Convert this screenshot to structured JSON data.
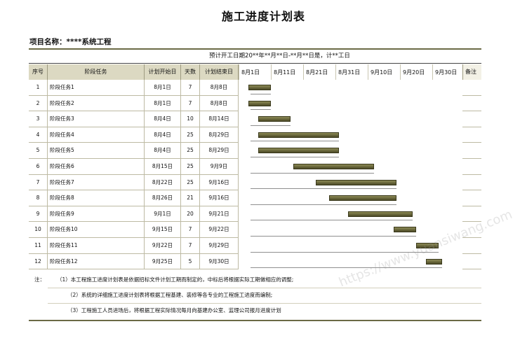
{
  "title": "施工进度计划表",
  "project_line": "项目名称：****系统工程",
  "schedule_note": "预计开工日期20**年**月**日-**月**日是，计**工日",
  "headers": {
    "seq": "序号",
    "task": "阶段任务",
    "plan_start": "计划开始日",
    "days": "天数",
    "plan_end": "计划结束日",
    "remark": "备注"
  },
  "date_labels": [
    "8月1日",
    "8月11日",
    "8月21日",
    "8月31日",
    "9月10日",
    "9月20日",
    "9月30日"
  ],
  "tasks": [
    {
      "seq": "1",
      "name": "阶段任务1",
      "start": "8月1日",
      "days": "7",
      "end": "8月8日"
    },
    {
      "seq": "2",
      "name": "阶段任务2",
      "start": "8月1日",
      "days": "7",
      "end": "8月8日"
    },
    {
      "seq": "3",
      "name": "阶段任务3",
      "start": "8月4日",
      "days": "10",
      "end": "8月14日"
    },
    {
      "seq": "4",
      "name": "阶段任务4",
      "start": "8月4日",
      "days": "25",
      "end": "8月29日"
    },
    {
      "seq": "5",
      "name": "阶段任务5",
      "start": "8月4日",
      "days": "25",
      "end": "8月29日"
    },
    {
      "seq": "6",
      "name": "阶段任务6",
      "start": "8月15日",
      "days": "25",
      "end": "9月9日"
    },
    {
      "seq": "7",
      "name": "阶段任务7",
      "start": "8月22日",
      "days": "25",
      "end": "9月16日"
    },
    {
      "seq": "8",
      "name": "阶段任务8",
      "start": "8月26日",
      "days": "21",
      "end": "9月16日"
    },
    {
      "seq": "9",
      "name": "阶段任务9",
      "start": "9月1日",
      "days": "20",
      "end": "9月21日"
    },
    {
      "seq": "10",
      "name": "阶段任务10",
      "start": "9月15日",
      "days": "7",
      "end": "9月22日"
    },
    {
      "seq": "11",
      "name": "阶段任务11",
      "start": "9月22日",
      "days": "7",
      "end": "9月29日"
    },
    {
      "seq": "12",
      "name": "阶段任务12",
      "start": "9月25日",
      "days": "5",
      "end": "9月30日"
    }
  ],
  "gantt_days": [
    {
      "start_day": 3,
      "duration": 7
    },
    {
      "start_day": 3,
      "duration": 7
    },
    {
      "start_day": 6,
      "duration": 10
    },
    {
      "start_day": 6,
      "duration": 25
    },
    {
      "start_day": 6,
      "duration": 25
    },
    {
      "start_day": 17,
      "duration": 25
    },
    {
      "start_day": 24,
      "duration": 25
    },
    {
      "start_day": 28,
      "duration": 21
    },
    {
      "start_day": 34,
      "duration": 20
    },
    {
      "start_day": 48,
      "duration": 7
    },
    {
      "start_day": 55,
      "duration": 7
    },
    {
      "start_day": 58,
      "duration": 5
    }
  ],
  "notes_label": "注：",
  "notes": [
    "（1）本工程施工进度计划表是依据招标文件计划工期而制定的，中标后将根据实际工期做相应的调整;",
    "（2）系统的详细施工进度计划表将根据工程基建、装修等各专业的工程施工进度而编制;",
    "（3）工程施工人员进场后，将根据工程实际情况每月向基建办公室、监理公司报月进度计划"
  ],
  "watermark": "https://www.yuansiwang.com"
}
